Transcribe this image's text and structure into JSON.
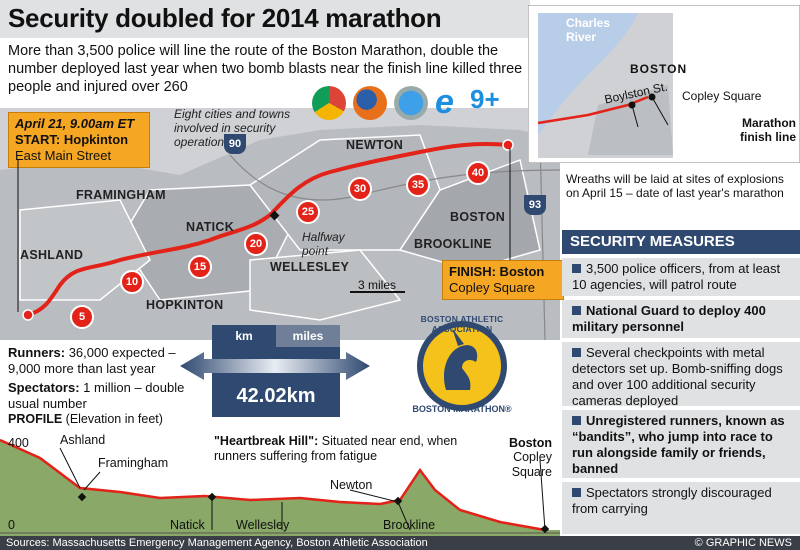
{
  "title": "Security doubled for 2014 marathon",
  "intro": "More than 3,500 police will line the route of the Boston Marathon, double the number deployed last year when two bomb blasts near the finish line killed three people and injured over 260",
  "start": {
    "date": "April 21, 9.00am ET",
    "label": "START: Hopkinton",
    "place": "East Main Street"
  },
  "finish": {
    "label": "FINISH: Boston",
    "place": "Copley Square"
  },
  "cities_note": "Eight cities and towns involved in security operation",
  "halfway": "Halfway point",
  "scale": "3 miles",
  "towns": [
    "ASHLAND",
    "FRAMINGHAM",
    "NATICK",
    "HOPKINTON",
    "WELLESLEY",
    "NEWTON",
    "BOSTON",
    "BROOKLINE"
  ],
  "highways": [
    "90",
    "93"
  ],
  "miles": [
    "5",
    "10",
    "15",
    "20",
    "25",
    "30",
    "35",
    "40"
  ],
  "inset": {
    "river": "Charles River",
    "city": "BOSTON",
    "street": "Boylston St.",
    "square": "Copley Square",
    "finish": "Marathon finish line"
  },
  "wreaths": "Wreaths will be laid at sites of explosions on April 15 – date of last year's marathon",
  "distance": {
    "km_label": "km",
    "miles_label": "miles",
    "value": "42.02km"
  },
  "runners": {
    "label": "Runners:",
    "text": "36,000 expected – 9,000 more than last year"
  },
  "spectators": {
    "label": "Spectators:",
    "text": "1 million – double usual number"
  },
  "baa": {
    "top": "BOSTON ATHLETIC ASSOCIATION",
    "bottom": "BOSTON MARATHON®"
  },
  "browser_badge": "9+",
  "security": {
    "title": "SECURITY MEASURES",
    "items": [
      "3,500 police officers, from at least 10 agencies, will patrol route",
      "National Guard to deploy 400 military personnel",
      "Several checkpoints with metal detectors set up. Bomb-sniffing dogs and over 100 additional security cameras deployed",
      "Unregistered runners, known as “bandits”, who jump into race to run alongside family or friends, banned",
      "Spectators strongly discouraged from carrying"
    ]
  },
  "profile": {
    "label": "PROFILE",
    "unit": "(Elevation in feet)",
    "y_max": "400",
    "y_min": "0",
    "heartbreak_title": "\"Heartbreak Hill\":",
    "heartbreak_text": "Situated near end, when runners suffering from fatigue",
    "places_top": [
      "Ashland",
      "Framingham",
      "Newton"
    ],
    "places_bottom": [
      "Natick",
      "Wellesley",
      "Brookline"
    ],
    "end_place": "Boston",
    "end_sub": "Copley Square"
  },
  "source": "Sources: Massachusetts Emergency Management Agency, Boston Athletic Association",
  "credit": "© GRAPHIC NEWS",
  "colors": {
    "route": "#e32219",
    "navy": "#2f4970",
    "orange": "#f5a623",
    "map": "#b9bcc0",
    "profile": "#8aa868"
  }
}
